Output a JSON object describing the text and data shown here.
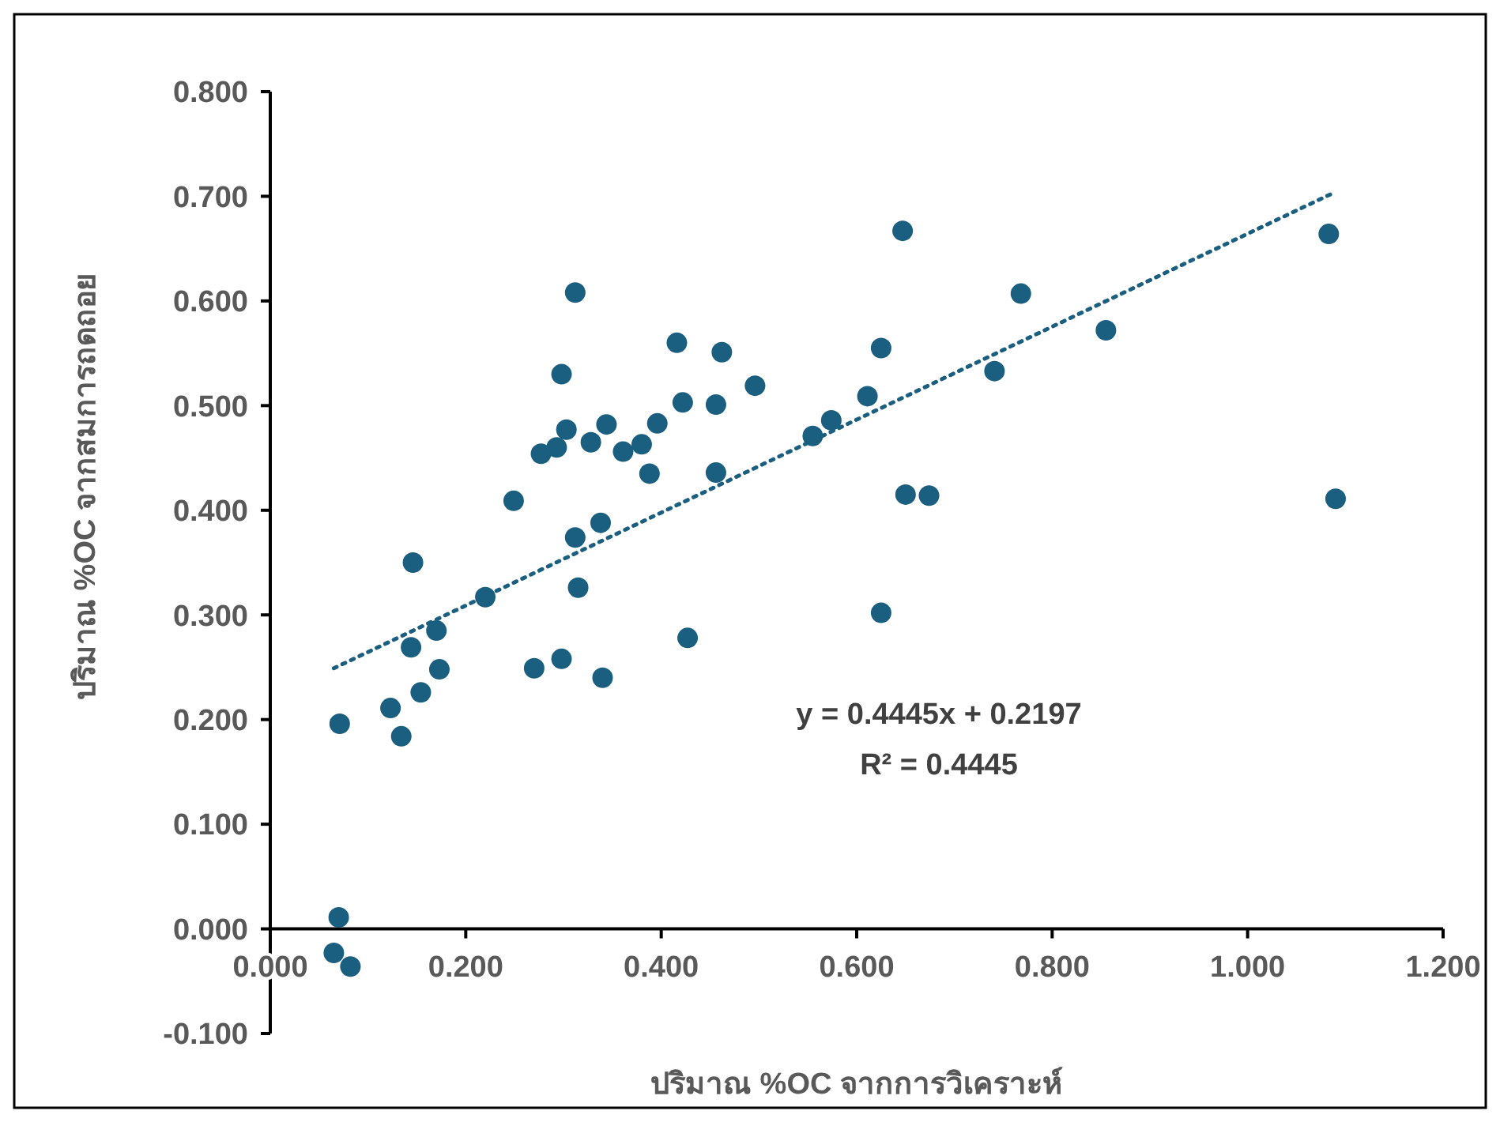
{
  "chart_data": {
    "type": "scatter",
    "xlabel": "ปริมาณ %OC จากการวิเคราะห์",
    "ylabel": "ปริมาณ %OC จากสมการถดถอย",
    "xlim": [
      0,
      1.2
    ],
    "xticks": [
      {
        "value": 0,
        "label": "0.000"
      },
      {
        "value": 0.2,
        "label": "0.200"
      },
      {
        "value": 0.4,
        "label": "0.400"
      },
      {
        "value": 0.6,
        "label": "0.600"
      },
      {
        "value": 0.8,
        "label": "0.800"
      },
      {
        "value": 1,
        "label": "1.000"
      },
      {
        "value": 1.2,
        "label": "1.200"
      }
    ],
    "ylim": [
      -0.1,
      0.8
    ],
    "yticks": [
      {
        "value": -0.1,
        "label": "-0.100"
      },
      {
        "value": 0,
        "label": "0.000"
      },
      {
        "value": 0.1,
        "label": "0.100"
      },
      {
        "value": 0.2,
        "label": "0.200"
      },
      {
        "value": 0.3,
        "label": "0.300"
      },
      {
        "value": 0.4,
        "label": "0.400"
      },
      {
        "value": 0.5,
        "label": "0.500"
      },
      {
        "value": 0.6,
        "label": "0.600"
      },
      {
        "value": 0.7,
        "label": "0.700"
      },
      {
        "value": 0.8,
        "label": "0.800"
      }
    ],
    "grid": false,
    "annotations": [
      "y = 0.4445x + 0.2197",
      "R² = 0.4445"
    ],
    "series": [
      {
        "color": "#1a5f80",
        "marker": "circle",
        "x": [
          0.07,
          0.065,
          0.082,
          0.071,
          0.123,
          0.134,
          0.144,
          0.146,
          0.154,
          0.17,
          0.173,
          0.22,
          0.249,
          0.27,
          0.277,
          0.293,
          0.298,
          0.298,
          0.303,
          0.312,
          0.312,
          0.315,
          0.328,
          0.338,
          0.34,
          0.344,
          0.361,
          0.38,
          0.388,
          0.396,
          0.416,
          0.422,
          0.427,
          0.456,
          0.456,
          0.462,
          0.496,
          0.555,
          0.574,
          0.611,
          0.625,
          0.625,
          0.647,
          0.65,
          0.674,
          0.741,
          0.768,
          0.855,
          1.083,
          1.09
        ],
        "values": [
          0.011,
          -0.023,
          -0.036,
          0.196,
          0.211,
          0.184,
          0.269,
          0.35,
          0.226,
          0.285,
          0.248,
          0.317,
          0.409,
          0.249,
          0.454,
          0.46,
          0.53,
          0.258,
          0.477,
          0.608,
          0.374,
          0.326,
          0.465,
          0.388,
          0.24,
          0.482,
          0.456,
          0.463,
          0.435,
          0.483,
          0.56,
          0.503,
          0.278,
          0.501,
          0.436,
          0.551,
          0.519,
          0.471,
          0.486,
          0.509,
          0.555,
          0.302,
          0.667,
          0.415,
          0.414,
          0.533,
          0.607,
          0.572,
          0.664,
          0.411
        ]
      },
      {
        "type": "line",
        "color": "#1a5f80",
        "line_style": "dotted",
        "marker": "none",
        "x": [
          0.065,
          1.085
        ],
        "values": [
          0.249,
          0.702
        ]
      }
    ]
  }
}
